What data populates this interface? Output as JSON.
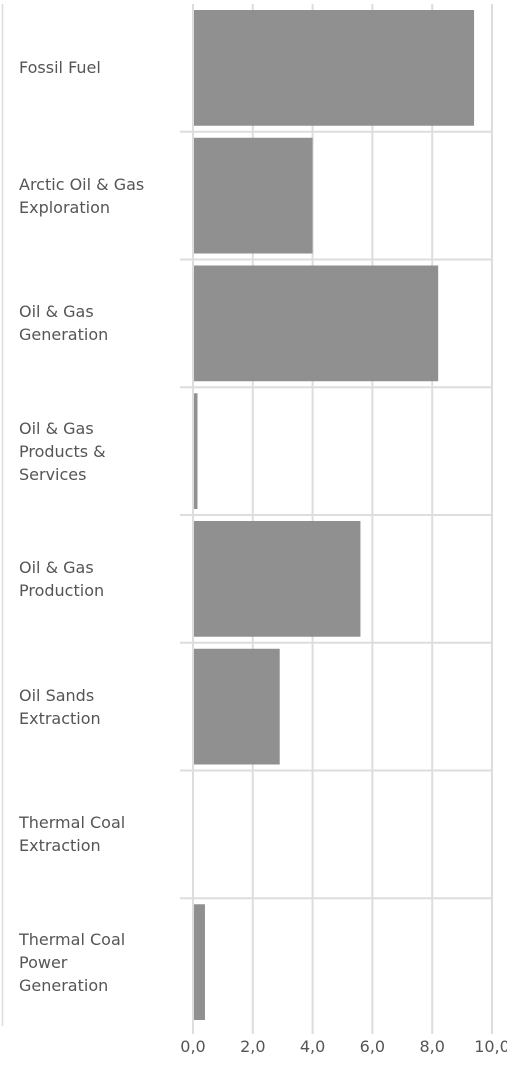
{
  "chart_data": {
    "type": "bar",
    "orientation": "horizontal",
    "categories": [
      "Fossil Fuel",
      "Arctic Oil & Gas\nExploration",
      "Oil & Gas\nGeneration",
      "Oil & Gas\nProducts &\nServices",
      "Oil & Gas\nProduction",
      "Oil Sands\nExtraction",
      "Thermal Coal\nExtraction",
      "Thermal Coal\nPower\nGeneration"
    ],
    "values": [
      9.4,
      4.0,
      8.2,
      0.15,
      5.6,
      2.9,
      0,
      0.4
    ],
    "xlim": [
      0,
      10
    ],
    "xticks": [
      "0,0",
      "2,0",
      "4,0",
      "6,0",
      "8,0",
      "10,0"
    ],
    "grid": true,
    "colors": {
      "bar": "#8a8a8a",
      "grid": "#dddddd",
      "text": "#555555"
    }
  }
}
